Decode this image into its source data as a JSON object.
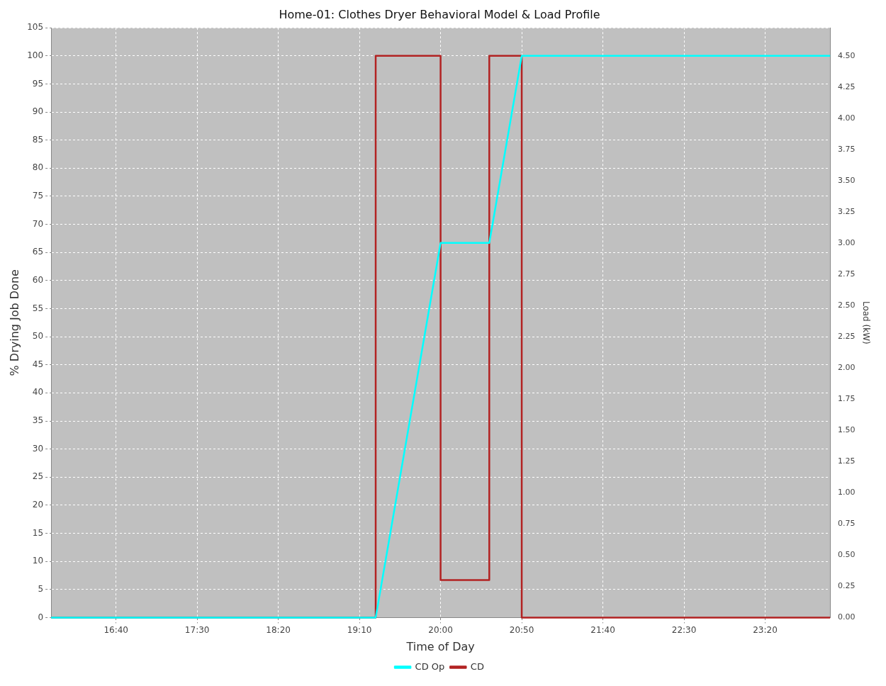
{
  "chart_data": {
    "type": "line",
    "title": "Home-01: Clothes Dryer Behavioral Model & Load Profile",
    "xlabel": "Time of Day",
    "ylabel": "% Drying Job Done",
    "y2label": "Load (kW)",
    "series": [
      {
        "name": "CD Op",
        "color": "#00ffff",
        "x": [
          16,
          19.3333,
          20,
          20.5,
          20.8333,
          24
        ],
        "values": [
          0,
          0,
          66.7,
          66.7,
          100,
          100
        ]
      },
      {
        "name": "CD",
        "type": "step",
        "axis": "y2",
        "color": "#b22222",
        "x": [
          16,
          19.3333,
          20,
          20.5,
          20.8333,
          24
        ],
        "values": [
          0,
          4.5,
          0.3,
          4.5,
          0,
          0
        ]
      }
    ],
    "xlim": [
      16,
      24
    ],
    "xticks": [
      {
        "value": 16.6667,
        "label": "16:40"
      },
      {
        "value": 17.5,
        "label": "17:30"
      },
      {
        "value": 18.3333,
        "label": "18:20"
      },
      {
        "value": 19.1667,
        "label": "19:10"
      },
      {
        "value": 20,
        "label": "20:00"
      },
      {
        "value": 20.8333,
        "label": "20:50"
      },
      {
        "value": 21.6667,
        "label": "21:40"
      },
      {
        "value": 22.5,
        "label": "22:30"
      },
      {
        "value": 23.3333,
        "label": "23:20"
      }
    ],
    "ylim": [
      0,
      105
    ],
    "yticks": [
      0,
      5,
      10,
      15,
      20,
      25,
      30,
      35,
      40,
      45,
      50,
      55,
      60,
      65,
      70,
      75,
      80,
      85,
      90,
      95,
      100,
      105
    ],
    "y2lim": [
      0,
      4.725
    ],
    "y2ticks": [
      {
        "value": 0,
        "label": "0.00"
      },
      {
        "value": 0.25,
        "label": "0.25"
      },
      {
        "value": 0.5,
        "label": "0.50"
      },
      {
        "value": 0.75,
        "label": "0.75"
      },
      {
        "value": 1,
        "label": "1.00"
      },
      {
        "value": 1.25,
        "label": "1.25"
      },
      {
        "value": 1.5,
        "label": "1.50"
      },
      {
        "value": 1.75,
        "label": "1.75"
      },
      {
        "value": 2,
        "label": "2.00"
      },
      {
        "value": 2.25,
        "label": "2.25"
      },
      {
        "value": 2.5,
        "label": "2.50"
      },
      {
        "value": 2.75,
        "label": "2.75"
      },
      {
        "value": 3,
        "label": "3.00"
      },
      {
        "value": 3.25,
        "label": "3.25"
      },
      {
        "value": 3.5,
        "label": "3.50"
      },
      {
        "value": 3.75,
        "label": "3.75"
      },
      {
        "value": 4,
        "label": "4.00"
      },
      {
        "value": 4.25,
        "label": "4.25"
      },
      {
        "value": 4.5,
        "label": "4.50"
      }
    ],
    "grid": true,
    "legend": "bottom",
    "marker": "none",
    "line_style": "solid"
  }
}
